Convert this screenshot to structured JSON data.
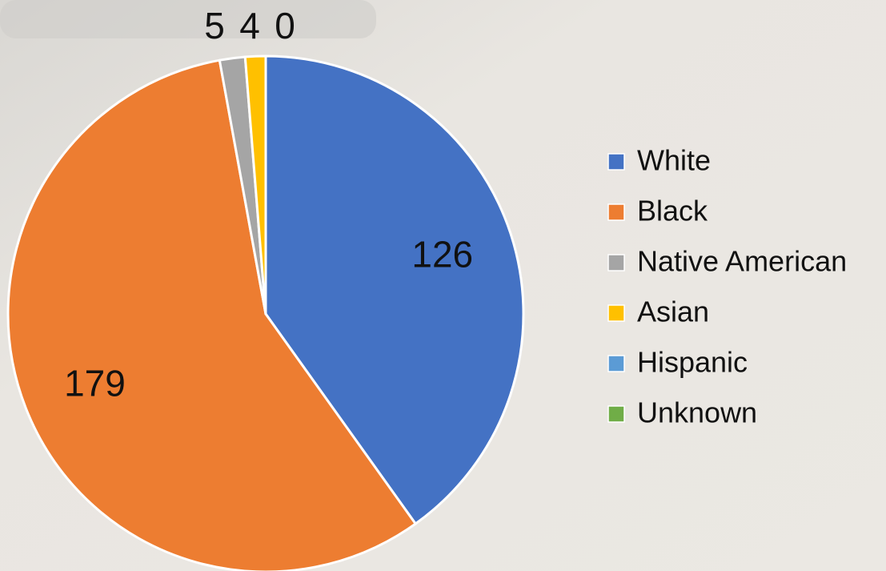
{
  "chart_data": {
    "type": "pie",
    "categories": [
      "White",
      "Black",
      "Native American",
      "Asian",
      "Hispanic",
      "Unknown"
    ],
    "values": [
      126,
      179,
      5,
      4,
      0,
      0
    ],
    "value_labels": [
      "126",
      "179",
      "5",
      "4",
      "0",
      null
    ],
    "colors": [
      "#4472c4",
      "#ed7d31",
      "#a5a5a5",
      "#ffc000",
      "#5b9bd5",
      "#70ad47"
    ],
    "legend": "right"
  }
}
